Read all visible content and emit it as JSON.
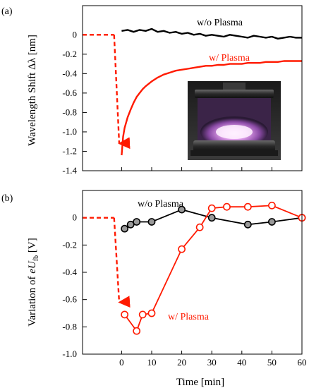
{
  "colors": {
    "plasma": "#ff1a00",
    "no_plasma": "#000000",
    "marker_gray": "#9a9a9a",
    "marker_red_fill": "#ffffff"
  },
  "chart_data": [
    {
      "type": "line",
      "panel_label": "(a)",
      "ylabel": "Wavelength Shift Δλ [nm]",
      "xlabel": "",
      "xlim": [
        -13,
        60
      ],
      "ylim": [
        -1.4,
        0.3
      ],
      "yticks": [
        "0",
        "-0.2",
        "-0.4",
        "-0.6",
        "-0.8",
        "-1.0",
        "-1.2",
        "-1.4"
      ],
      "ytick_values": [
        0,
        -0.2,
        -0.4,
        -0.6,
        -0.8,
        -1.0,
        -1.2,
        -1.4
      ],
      "grid": false,
      "series": [
        {
          "name": "w/o Plasma",
          "color": "#000000",
          "x": [
            0,
            2,
            4,
            6,
            8,
            10,
            12,
            14,
            16,
            18,
            20,
            22,
            24,
            26,
            28,
            30,
            32,
            34,
            36,
            38,
            40,
            42,
            44,
            46,
            48,
            50,
            52,
            54,
            56,
            58,
            60
          ],
          "y": [
            0.04,
            0.05,
            0.03,
            0.05,
            0.04,
            0.06,
            0.03,
            0.04,
            0.02,
            0.03,
            0.01,
            0.02,
            0.0,
            0.01,
            -0.01,
            0.0,
            -0.01,
            -0.02,
            0.0,
            -0.01,
            -0.02,
            -0.03,
            -0.01,
            -0.02,
            -0.03,
            -0.02,
            -0.04,
            -0.03,
            -0.02,
            -0.03,
            -0.03
          ]
        },
        {
          "name": "w/ Plasma",
          "color": "#ff1a00",
          "x": [
            0,
            0.5,
            1,
            2,
            3,
            4,
            5,
            6,
            7,
            8,
            10,
            12,
            14,
            16,
            18,
            20,
            22,
            24,
            26,
            28,
            30,
            32,
            34,
            36,
            38,
            40,
            42,
            44,
            46,
            48,
            50,
            52,
            54,
            56,
            58,
            60
          ],
          "y": [
            -1.24,
            -1.05,
            -0.96,
            -0.85,
            -0.77,
            -0.7,
            -0.64,
            -0.6,
            -0.56,
            -0.53,
            -0.48,
            -0.44,
            -0.41,
            -0.39,
            -0.37,
            -0.36,
            -0.35,
            -0.34,
            -0.33,
            -0.32,
            -0.32,
            -0.31,
            -0.31,
            -0.3,
            -0.3,
            -0.3,
            -0.29,
            -0.29,
            -0.29,
            -0.28,
            -0.28,
            -0.28,
            -0.27,
            -0.27,
            -0.27,
            -0.27
          ]
        }
      ],
      "drop_arrow": {
        "baseline_x": [
          -13,
          -2.5
        ],
        "baseline_y": 0.0,
        "tip_x": -0.8,
        "tip_y": -1.12
      },
      "annotations": {
        "no_plasma_label": "w/o Plasma",
        "plasma_label": "w/ Plasma"
      },
      "inset_photo": "plasma-chamber-photo"
    },
    {
      "type": "line",
      "panel_label": "(b)",
      "ylabel_prefix": "Variation of ",
      "ylabel_var": "eU",
      "ylabel_sub": "fb",
      "ylabel_suffix": " [V]",
      "xlabel": "Time [min]",
      "xlim": [
        -13,
        60
      ],
      "ylim": [
        -1.0,
        0.2
      ],
      "xticks": [
        "0",
        "10",
        "20",
        "30",
        "40",
        "50",
        "60"
      ],
      "xtick_values": [
        0,
        10,
        20,
        30,
        40,
        50,
        60
      ],
      "yticks": [
        "0",
        "-0.2",
        "-0.4",
        "-0.6",
        "-0.8",
        "-1.0"
      ],
      "ytick_values": [
        0,
        -0.2,
        -0.4,
        -0.6,
        -0.8,
        -1.0
      ],
      "grid": false,
      "series": [
        {
          "name": "w/o Plasma",
          "color": "#000000",
          "x": [
            1,
            3,
            5,
            10,
            20,
            30,
            42,
            50,
            60
          ],
          "y": [
            -0.08,
            -0.05,
            -0.03,
            -0.03,
            0.06,
            0.0,
            -0.05,
            -0.03,
            0.0
          ]
        },
        {
          "name": "w/ Plasma",
          "color": "#ff1a00",
          "x": [
            1,
            5,
            7,
            10,
            20,
            26,
            30,
            35,
            42,
            50,
            60
          ],
          "y": [
            -0.71,
            -0.83,
            -0.71,
            -0.7,
            -0.23,
            -0.07,
            0.07,
            0.08,
            0.08,
            0.09,
            0.0
          ]
        }
      ],
      "drop_arrow": {
        "baseline_x": [
          -13,
          -2.5
        ],
        "baseline_y": 0.0,
        "tip_x": -0.8,
        "tip_y": -0.62
      },
      "annotations": {
        "no_plasma_label": "w/o Plasma",
        "plasma_label": "w/ Plasma"
      }
    }
  ]
}
